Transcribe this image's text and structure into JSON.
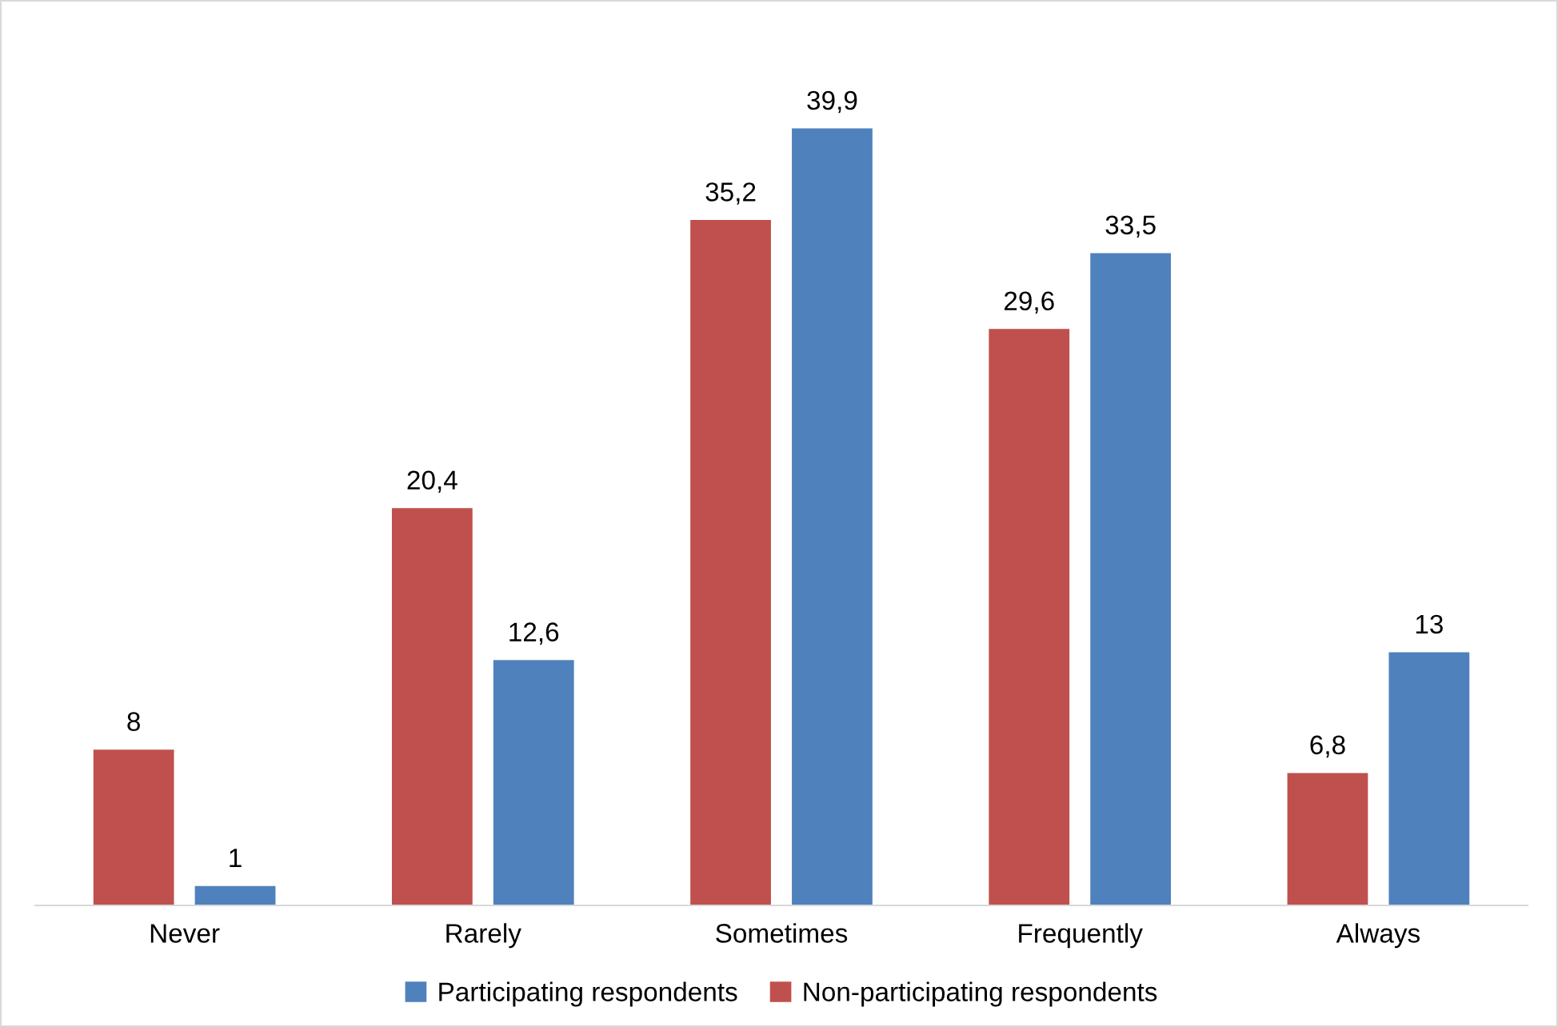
{
  "chart_data": {
    "type": "bar",
    "categories": [
      "Never",
      "Rarely",
      "Sometimes",
      "Frequently",
      "Always"
    ],
    "series": [
      {
        "name": "Non-participating respondents",
        "color": "#c0504d",
        "values": [
          8,
          20.4,
          35.2,
          29.6,
          6.8
        ],
        "value_labels": [
          "8",
          "20,4",
          "35,2",
          "29,6",
          "6,8"
        ]
      },
      {
        "name": "Participating respondents",
        "color": "#4f81bd",
        "values": [
          1,
          12.6,
          39.9,
          33.5,
          13
        ],
        "value_labels": [
          "1",
          "12,6",
          "39,9",
          "33,5",
          "13"
        ]
      }
    ],
    "legend": "bottom"
  }
}
